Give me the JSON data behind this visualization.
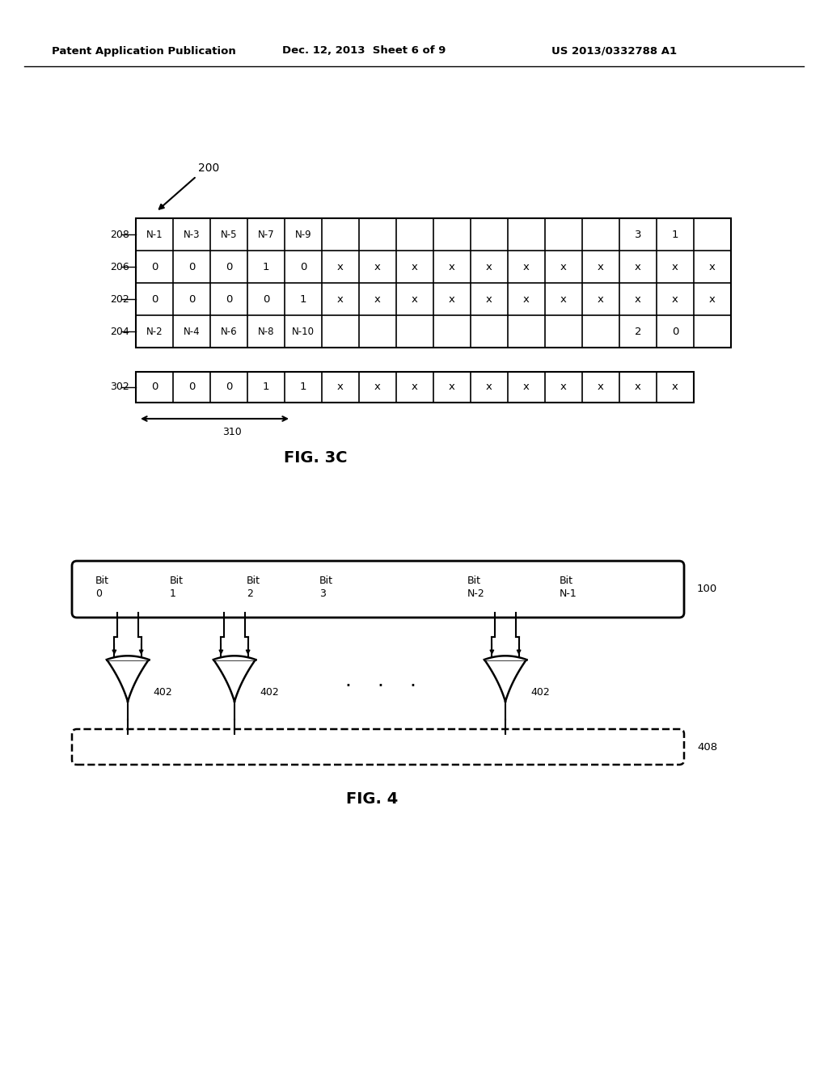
{
  "header_left": "Patent Application Publication",
  "header_mid": "Dec. 12, 2013  Sheet 6 of 9",
  "header_right": "US 2013/0332788 A1",
  "fig3c_label": "FIG. 3C",
  "fig4_label": "FIG. 4",
  "row208_cells": [
    "N-1",
    "N-3",
    "N-5",
    "N-7",
    "N-9",
    "",
    "",
    "",
    "",
    "",
    "",
    "",
    "",
    "3",
    "1",
    ""
  ],
  "row206_cells": [
    "0",
    "0",
    "0",
    "1",
    "0",
    "x",
    "x",
    "x",
    "x",
    "x",
    "x",
    "x x",
    "x",
    "x",
    "x",
    ""
  ],
  "row202_cells": [
    "0",
    "0",
    "0",
    "0",
    "1",
    "x",
    "x",
    "x",
    "x",
    "x",
    "x",
    "x x",
    "x",
    "x",
    "x",
    ""
  ],
  "row204_cells": [
    "N-2",
    "N-4",
    "N-6",
    "N-8",
    "N-10",
    "",
    "",
    "",
    "",
    "",
    "",
    "",
    "",
    "2",
    "0",
    ""
  ],
  "row302_cells": [
    "0",
    "0",
    "0",
    "1",
    "1",
    "x",
    "x",
    "x",
    "x",
    "x",
    "x",
    "x",
    "x",
    "x",
    "x"
  ],
  "background": "#ffffff",
  "line_color": "#000000",
  "text_color": "#000000"
}
